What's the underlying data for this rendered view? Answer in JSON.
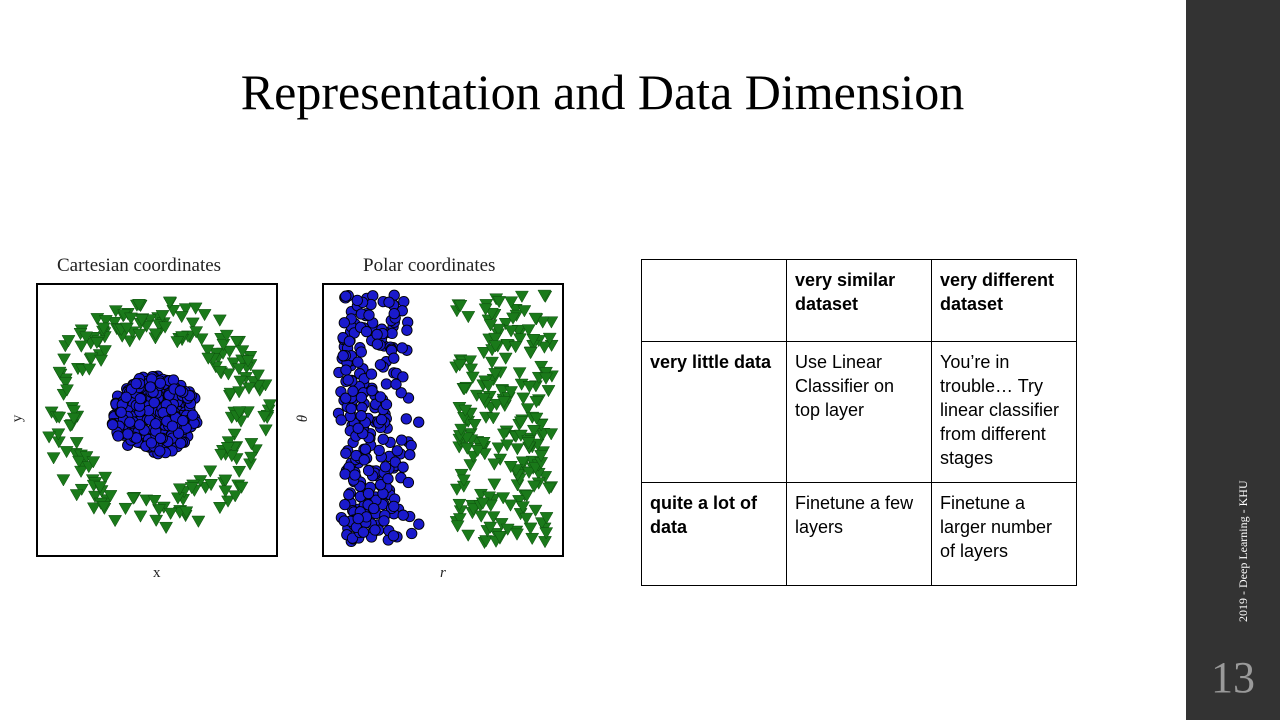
{
  "slide": {
    "title": "Representation and Data Dimension",
    "footer": "2019 - Deep Learning - KHU",
    "page_number": "13"
  },
  "figure": {
    "left": {
      "title": "Cartesian coordinates",
      "xlabel": "x",
      "ylabel": "y"
    },
    "right": {
      "title": "Polar coordinates",
      "xlabel": "r",
      "ylabel": "θ"
    }
  },
  "chart_data": [
    {
      "type": "scatter",
      "title": "Cartesian coordinates",
      "xlabel": "x",
      "ylabel": "y",
      "series": [
        {
          "marker": "circle",
          "color": "#1a1acc",
          "count": 300,
          "distribution": "dense disc in the center"
        },
        {
          "marker": "triangle-down",
          "color": "#1a7a1a",
          "count": 220,
          "distribution": "ring surrounding the disc"
        }
      ]
    },
    {
      "type": "scatter",
      "title": "Polar coordinates",
      "xlabel": "r",
      "ylabel": "θ",
      "series": [
        {
          "marker": "circle",
          "color": "#1a1acc",
          "count": 300,
          "distribution": "vertical band at small r"
        },
        {
          "marker": "triangle-down",
          "color": "#1a7a1a",
          "count": 220,
          "distribution": "vertical band at large r"
        }
      ]
    }
  ],
  "table": {
    "header": [
      "",
      "very similar dataset",
      "very different dataset"
    ],
    "rows": [
      [
        "very little data",
        "Use Linear Classifier on top layer",
        "You’re in trouble… Try linear classifier from different stages"
      ],
      [
        "quite a lot of data",
        "Finetune a few layers",
        "Finetune a larger number of layers"
      ]
    ]
  },
  "colors": {
    "sidebar": "#333333",
    "blue_points": "#1a1acc",
    "green_points": "#1a7a1a"
  }
}
